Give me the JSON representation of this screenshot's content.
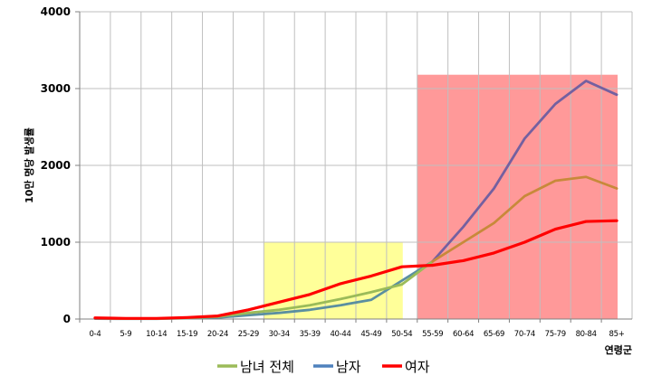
{
  "chart_data": {
    "type": "line",
    "xlabel": "연령군",
    "ylabel": "10만 명당 발생률",
    "ylim": [
      0,
      4000
    ],
    "yticks": [
      0,
      1000,
      2000,
      3000,
      4000
    ],
    "grid": true,
    "legend_position": "bottom",
    "categories": [
      "0-4",
      "5-9",
      "10-14",
      "15-19",
      "20-24",
      "25-29",
      "30-34",
      "35-39",
      "40-44",
      "45-49",
      "50-54",
      "55-59",
      "60-64",
      "65-69",
      "70-74",
      "75-79",
      "80-84",
      "85+"
    ],
    "series": [
      {
        "name": "남녀 전체",
        "color": "#9BBB59",
        "plot_color": "#9BBB59",
        "late_color": "#C8893A",
        "values": [
          10,
          5,
          5,
          15,
          30,
          80,
          120,
          180,
          260,
          350,
          450,
          750,
          1000,
          1250,
          1600,
          1800,
          1850,
          1700
        ]
      },
      {
        "name": "남자",
        "color": "#4F81BD",
        "plot_color": "#5B8FA0",
        "late_color": "#7460A0",
        "values": [
          5,
          3,
          3,
          10,
          20,
          50,
          80,
          120,
          180,
          250,
          500,
          750,
          1200,
          1700,
          2350,
          2800,
          3100,
          2920
        ]
      },
      {
        "name": "여자",
        "color": "#FF0000",
        "plot_color": "#FF0000",
        "late_color": "#FF0000",
        "values": [
          15,
          8,
          8,
          20,
          40,
          120,
          220,
          320,
          460,
          560,
          680,
          700,
          760,
          860,
          1000,
          1170,
          1270,
          1280
        ]
      }
    ],
    "highlights": [
      {
        "from": "30-34",
        "to": "50-54",
        "y": [
          0,
          1000
        ],
        "color": "#FFFF99"
      },
      {
        "from": "55-59",
        "to": "85+",
        "y": [
          0,
          3180
        ],
        "color": "#FF9999"
      }
    ]
  }
}
